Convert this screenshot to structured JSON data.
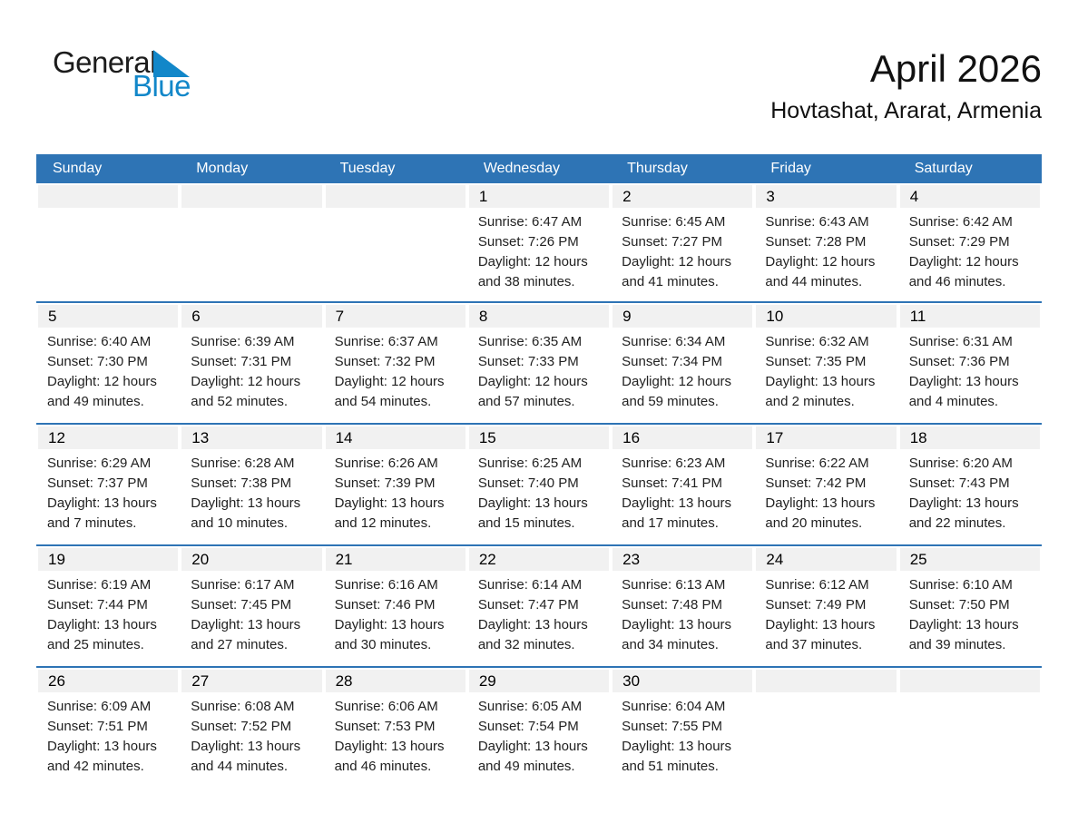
{
  "logo": {
    "general": "General",
    "blue": "Blue"
  },
  "header": {
    "title": "April 2026",
    "subtitle": "Hovtashat, Ararat, Armenia"
  },
  "weekdays": [
    "Sunday",
    "Monday",
    "Tuesday",
    "Wednesday",
    "Thursday",
    "Friday",
    "Saturday"
  ],
  "colors": {
    "header_bg": "#2e74b5",
    "row_divider": "#2e74b5",
    "day_strip_bg": "#f1f1f1",
    "logo_blue": "#1287c9",
    "header_text": "#ffffff"
  },
  "weeks": [
    [
      null,
      null,
      null,
      {
        "day": "1",
        "sunrise": "Sunrise: 6:47 AM",
        "sunset": "Sunset: 7:26 PM",
        "daylight": "Daylight: 12 hours and 38 minutes."
      },
      {
        "day": "2",
        "sunrise": "Sunrise: 6:45 AM",
        "sunset": "Sunset: 7:27 PM",
        "daylight": "Daylight: 12 hours and 41 minutes."
      },
      {
        "day": "3",
        "sunrise": "Sunrise: 6:43 AM",
        "sunset": "Sunset: 7:28 PM",
        "daylight": "Daylight: 12 hours and 44 minutes."
      },
      {
        "day": "4",
        "sunrise": "Sunrise: 6:42 AM",
        "sunset": "Sunset: 7:29 PM",
        "daylight": "Daylight: 12 hours and 46 minutes."
      }
    ],
    [
      {
        "day": "5",
        "sunrise": "Sunrise: 6:40 AM",
        "sunset": "Sunset: 7:30 PM",
        "daylight": "Daylight: 12 hours and 49 minutes."
      },
      {
        "day": "6",
        "sunrise": "Sunrise: 6:39 AM",
        "sunset": "Sunset: 7:31 PM",
        "daylight": "Daylight: 12 hours and 52 minutes."
      },
      {
        "day": "7",
        "sunrise": "Sunrise: 6:37 AM",
        "sunset": "Sunset: 7:32 PM",
        "daylight": "Daylight: 12 hours and 54 minutes."
      },
      {
        "day": "8",
        "sunrise": "Sunrise: 6:35 AM",
        "sunset": "Sunset: 7:33 PM",
        "daylight": "Daylight: 12 hours and 57 minutes."
      },
      {
        "day": "9",
        "sunrise": "Sunrise: 6:34 AM",
        "sunset": "Sunset: 7:34 PM",
        "daylight": "Daylight: 12 hours and 59 minutes."
      },
      {
        "day": "10",
        "sunrise": "Sunrise: 6:32 AM",
        "sunset": "Sunset: 7:35 PM",
        "daylight": "Daylight: 13 hours and 2 minutes."
      },
      {
        "day": "11",
        "sunrise": "Sunrise: 6:31 AM",
        "sunset": "Sunset: 7:36 PM",
        "daylight": "Daylight: 13 hours and 4 minutes."
      }
    ],
    [
      {
        "day": "12",
        "sunrise": "Sunrise: 6:29 AM",
        "sunset": "Sunset: 7:37 PM",
        "daylight": "Daylight: 13 hours and 7 minutes."
      },
      {
        "day": "13",
        "sunrise": "Sunrise: 6:28 AM",
        "sunset": "Sunset: 7:38 PM",
        "daylight": "Daylight: 13 hours and 10 minutes."
      },
      {
        "day": "14",
        "sunrise": "Sunrise: 6:26 AM",
        "sunset": "Sunset: 7:39 PM",
        "daylight": "Daylight: 13 hours and 12 minutes."
      },
      {
        "day": "15",
        "sunrise": "Sunrise: 6:25 AM",
        "sunset": "Sunset: 7:40 PM",
        "daylight": "Daylight: 13 hours and 15 minutes."
      },
      {
        "day": "16",
        "sunrise": "Sunrise: 6:23 AM",
        "sunset": "Sunset: 7:41 PM",
        "daylight": "Daylight: 13 hours and 17 minutes."
      },
      {
        "day": "17",
        "sunrise": "Sunrise: 6:22 AM",
        "sunset": "Sunset: 7:42 PM",
        "daylight": "Daylight: 13 hours and 20 minutes."
      },
      {
        "day": "18",
        "sunrise": "Sunrise: 6:20 AM",
        "sunset": "Sunset: 7:43 PM",
        "daylight": "Daylight: 13 hours and 22 minutes."
      }
    ],
    [
      {
        "day": "19",
        "sunrise": "Sunrise: 6:19 AM",
        "sunset": "Sunset: 7:44 PM",
        "daylight": "Daylight: 13 hours and 25 minutes."
      },
      {
        "day": "20",
        "sunrise": "Sunrise: 6:17 AM",
        "sunset": "Sunset: 7:45 PM",
        "daylight": "Daylight: 13 hours and 27 minutes."
      },
      {
        "day": "21",
        "sunrise": "Sunrise: 6:16 AM",
        "sunset": "Sunset: 7:46 PM",
        "daylight": "Daylight: 13 hours and 30 minutes."
      },
      {
        "day": "22",
        "sunrise": "Sunrise: 6:14 AM",
        "sunset": "Sunset: 7:47 PM",
        "daylight": "Daylight: 13 hours and 32 minutes."
      },
      {
        "day": "23",
        "sunrise": "Sunrise: 6:13 AM",
        "sunset": "Sunset: 7:48 PM",
        "daylight": "Daylight: 13 hours and 34 minutes."
      },
      {
        "day": "24",
        "sunrise": "Sunrise: 6:12 AM",
        "sunset": "Sunset: 7:49 PM",
        "daylight": "Daylight: 13 hours and 37 minutes."
      },
      {
        "day": "25",
        "sunrise": "Sunrise: 6:10 AM",
        "sunset": "Sunset: 7:50 PM",
        "daylight": "Daylight: 13 hours and 39 minutes."
      }
    ],
    [
      {
        "day": "26",
        "sunrise": "Sunrise: 6:09 AM",
        "sunset": "Sunset: 7:51 PM",
        "daylight": "Daylight: 13 hours and 42 minutes."
      },
      {
        "day": "27",
        "sunrise": "Sunrise: 6:08 AM",
        "sunset": "Sunset: 7:52 PM",
        "daylight": "Daylight: 13 hours and 44 minutes."
      },
      {
        "day": "28",
        "sunrise": "Sunrise: 6:06 AM",
        "sunset": "Sunset: 7:53 PM",
        "daylight": "Daylight: 13 hours and 46 minutes."
      },
      {
        "day": "29",
        "sunrise": "Sunrise: 6:05 AM",
        "sunset": "Sunset: 7:54 PM",
        "daylight": "Daylight: 13 hours and 49 minutes."
      },
      {
        "day": "30",
        "sunrise": "Sunrise: 6:04 AM",
        "sunset": "Sunset: 7:55 PM",
        "daylight": "Daylight: 13 hours and 51 minutes."
      },
      null,
      null
    ]
  ]
}
